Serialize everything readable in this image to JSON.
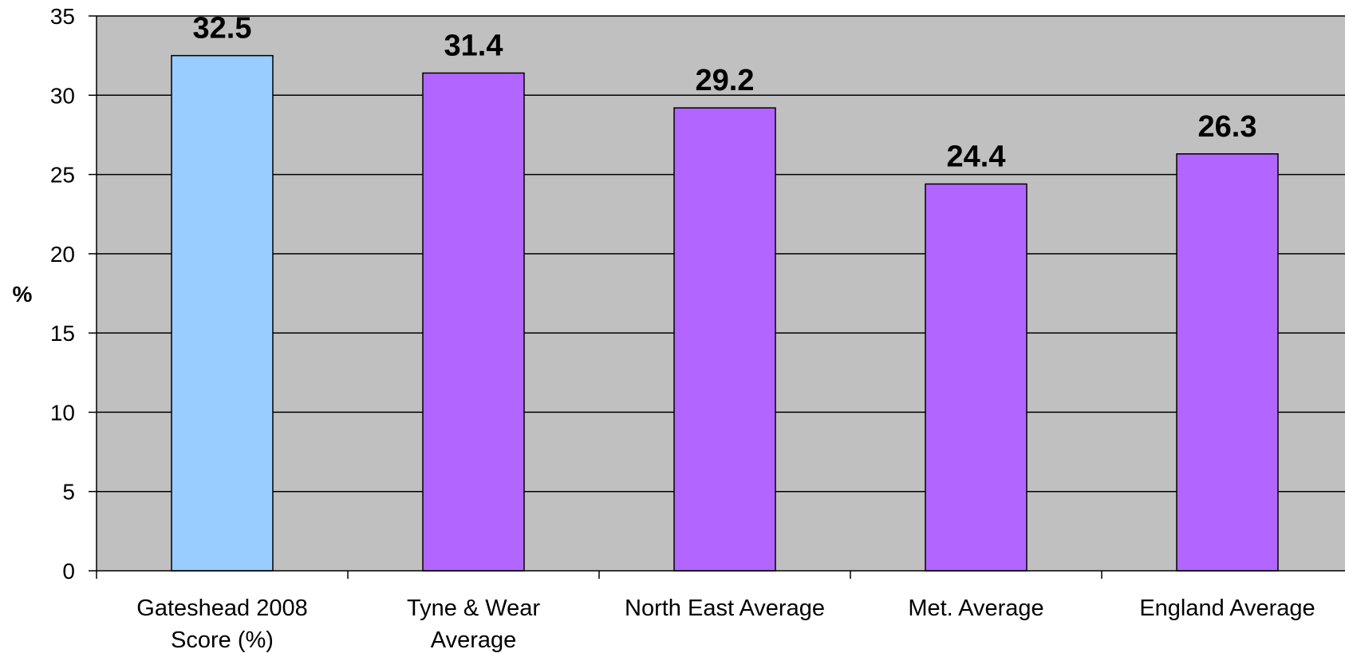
{
  "chart_data": {
    "type": "bar",
    "title": "",
    "xlabel": "",
    "ylabel": "%",
    "ylim": [
      0,
      35
    ],
    "yticks": [
      0,
      5,
      10,
      15,
      20,
      25,
      30,
      35
    ],
    "grid": true,
    "legend": "none",
    "categories": [
      [
        "Gateshead 2008",
        "Score (%)"
      ],
      [
        "Tyne & Wear",
        "Average"
      ],
      [
        "North East Average"
      ],
      [
        "Met. Average"
      ],
      [
        "England Average"
      ]
    ],
    "values": [
      32.5,
      31.4,
      29.2,
      24.4,
      26.3
    ],
    "value_labels": [
      "32.5",
      "31.4",
      "29.2",
      "24.4",
      "26.3"
    ],
    "bar_colors": [
      "#99ccff",
      "#b266ff",
      "#b266ff",
      "#b266ff",
      "#b266ff"
    ],
    "plot_background": "#c0c0c0"
  }
}
